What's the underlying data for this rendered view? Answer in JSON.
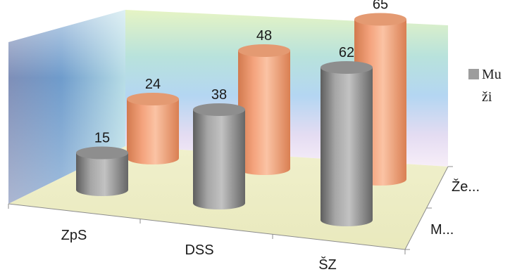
{
  "chart_data": {
    "type": "bar",
    "subtype": "3d-cylinder",
    "categories": [
      "ZpS",
      "DSS",
      "ŠZ"
    ],
    "series": [
      {
        "name": "Ženy",
        "label": "Že...",
        "color": "#F4A37D",
        "values": [
          24,
          48,
          65
        ]
      },
      {
        "name": "Muži",
        "label": "M...",
        "color": "#9D9D9D",
        "values": [
          15,
          38,
          62
        ]
      }
    ],
    "legend": {
      "position": "right",
      "entry": "Muži",
      "line1": "Mu",
      "line2": "ži",
      "swatch_color": "#9D9D9D"
    },
    "ylim": [
      0,
      70
    ],
    "grid": false,
    "title": "",
    "xlabel": "",
    "ylabel": ""
  }
}
